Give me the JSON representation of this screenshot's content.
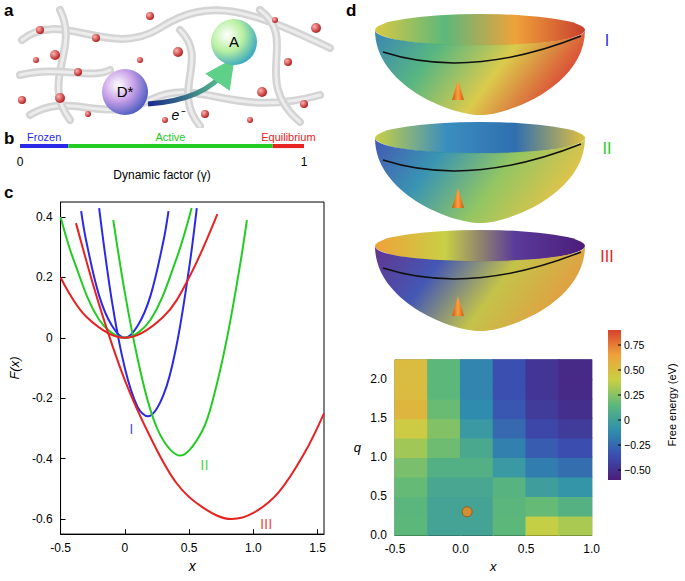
{
  "panel_labels": [
    "a",
    "b",
    "c",
    "d"
  ],
  "diagram": {
    "donor": "D*",
    "acceptor": "A",
    "electron": "e⁻"
  },
  "surfaces": [
    {
      "label": "I",
      "color": "#2a2ae6"
    },
    {
      "label": "II",
      "color": "#22cc22"
    },
    {
      "label": "III",
      "color": "#e62222"
    }
  ],
  "chart_data": [
    {
      "type": "bar",
      "orientation": "horizontal",
      "stacked": true,
      "categories": [
        "Frozen",
        "Active",
        "Equilibrium"
      ],
      "values": [
        0.17,
        0.72,
        0.11
      ],
      "colors": [
        "#2a2ae6",
        "#22cc22",
        "#e62222"
      ],
      "xlabel": "Dynamic factor (γ)",
      "xlim": [
        0,
        1
      ],
      "xticks": [
        0,
        1
      ],
      "grid": false
    },
    {
      "type": "line",
      "xlabel": "x",
      "ylabel": "F(x)",
      "xlim": [
        -0.5,
        1.55
      ],
      "xticks": [
        -0.5,
        0,
        0.5,
        {
          "value": 1,
          "label": "1.0"
        },
        1.5
      ],
      "ylim": [
        -0.65,
        0.45
      ],
      "yticks": [
        -0.6,
        -0.4,
        -0.2,
        0,
        0.2,
        0.4
      ],
      "grid": false,
      "series": [
        {
          "color": "#2a2ae6",
          "values": [
            [
              -0.34,
              0.42
            ],
            [
              -0.3,
              0.32
            ],
            [
              -0.2,
              0.14
            ],
            [
              -0.1,
              0.04
            ],
            [
              0,
              0
            ],
            [
              0.1,
              0.04
            ],
            [
              0.2,
              0.14
            ],
            [
              0.3,
              0.32
            ],
            [
              0.34,
              0.42
            ]
          ]
        },
        {
          "color": "#2a2ae6",
          "values": [
            [
              -0.2,
              0.43
            ],
            [
              -0.1,
              0.12
            ],
            [
              0,
              -0.1
            ],
            [
              0.1,
              -0.23
            ],
            [
              0.18,
              -0.26
            ],
            [
              0.3,
              -0.19
            ],
            [
              0.4,
              -0.03
            ],
            [
              0.5,
              0.23
            ],
            [
              0.56,
              0.43
            ]
          ]
        },
        {
          "color": "#22cc22",
          "values": [
            [
              -0.5,
              0.4
            ],
            [
              -0.4,
              0.26
            ],
            [
              -0.2,
              0.06
            ],
            [
              0,
              0
            ],
            [
              0.2,
              0.06
            ],
            [
              0.4,
              0.26
            ],
            [
              0.52,
              0.43
            ]
          ]
        },
        {
          "color": "#22cc22",
          "values": [
            [
              -0.09,
              0.39
            ],
            [
              0,
              0.15
            ],
            [
              0.1,
              -0.07
            ],
            [
              0.2,
              -0.24
            ],
            [
              0.3,
              -0.34
            ],
            [
              0.43,
              -0.39
            ],
            [
              0.6,
              -0.31
            ],
            [
              0.7,
              -0.18
            ],
            [
              0.8,
              0.01
            ],
            [
              0.9,
              0.25
            ],
            [
              0.95,
              0.39
            ]
          ]
        },
        {
          "color": "#e62222",
          "values": [
            [
              -0.5,
              0.2
            ],
            [
              -0.3,
              0.07
            ],
            [
              0,
              0
            ],
            [
              0.3,
              0.07
            ],
            [
              0.5,
              0.2
            ],
            [
              0.72,
              0.41
            ]
          ]
        },
        {
          "color": "#e62222",
          "values": [
            [
              -0.38,
              0.38
            ],
            [
              -0.2,
              0.11
            ],
            [
              0,
              -0.14
            ],
            [
              0.2,
              -0.33
            ],
            [
              0.4,
              -0.48
            ],
            [
              0.6,
              -0.56
            ],
            [
              0.83,
              -0.6
            ],
            [
              1.0,
              -0.58
            ],
            [
              1.2,
              -0.51
            ],
            [
              1.4,
              -0.38
            ],
            [
              1.55,
              -0.25
            ]
          ]
        }
      ],
      "annotations": [
        {
          "text": "I",
          "x": 0.05,
          "y": -0.3,
          "color": "#2a2ae6"
        },
        {
          "text": "II",
          "x": 0.62,
          "y": -0.42,
          "color": "#22cc22"
        },
        {
          "text": "III",
          "x": 1.1,
          "y": -0.615,
          "color": "#e62222"
        }
      ]
    },
    {
      "type": "heatmap",
      "xlabel": "x",
      "ylabel": "q",
      "xlim": [
        -0.5,
        1.0
      ],
      "xticks": [
        -0.5,
        {
          "value": 0,
          "label": "0.0"
        },
        0.5,
        {
          "value": 1,
          "label": "1.0"
        }
      ],
      "ylim": [
        0,
        2.25
      ],
      "yticks": [
        {
          "value": 0,
          "label": "0.0"
        },
        0.5,
        {
          "value": 1,
          "label": "1.0"
        },
        1.5,
        {
          "value": 2,
          "label": "2.0"
        }
      ],
      "x": [
        -0.375,
        -0.125,
        0.125,
        0.375,
        0.625,
        0.875
      ],
      "y": [
        0.125,
        0.375,
        0.625,
        0.875,
        1.125,
        1.375,
        1.625,
        1.875,
        2.125
      ],
      "values": [
        [
          0.15,
          0.02,
          0.02,
          0.15,
          0.39,
          0.33
        ],
        [
          0.14,
          0.02,
          0.02,
          0.14,
          0.17,
          0.11
        ],
        [
          0.17,
          0.04,
          0.04,
          0.12,
          -0.01,
          -0.07
        ],
        [
          0.22,
          0.1,
          0.1,
          -0.04,
          -0.17,
          -0.23
        ],
        [
          0.31,
          0.19,
          0.05,
          -0.16,
          -0.3,
          -0.36
        ],
        [
          0.43,
          0.24,
          -0.04,
          -0.25,
          -0.39,
          -0.45
        ],
        [
          0.54,
          0.18,
          -0.11,
          -0.32,
          -0.45,
          -0.51
        ],
        [
          0.51,
          0.15,
          -0.14,
          -0.35,
          -0.48,
          -0.54
        ],
        [
          0.51,
          0.15,
          -0.14,
          -0.35,
          -0.48,
          -0.54
        ]
      ],
      "colorbar_range": [
        -0.6,
        0.9
      ],
      "colorbar_ticks": [
        {
          "value": -0.5,
          "label": "−0.50"
        },
        {
          "value": -0.25,
          "label": "−0.25"
        },
        0,
        0.25,
        {
          "value": 0.5,
          "label": "0.50"
        },
        0.75
      ],
      "colorbar_title": "Free energy (eV)",
      "grid": false,
      "series": [
        {
          "type": "scatter",
          "marker": "circle",
          "color": "#f28a1c",
          "values": [
            [
              0.05,
              0.3
            ]
          ]
        }
      ]
    }
  ]
}
